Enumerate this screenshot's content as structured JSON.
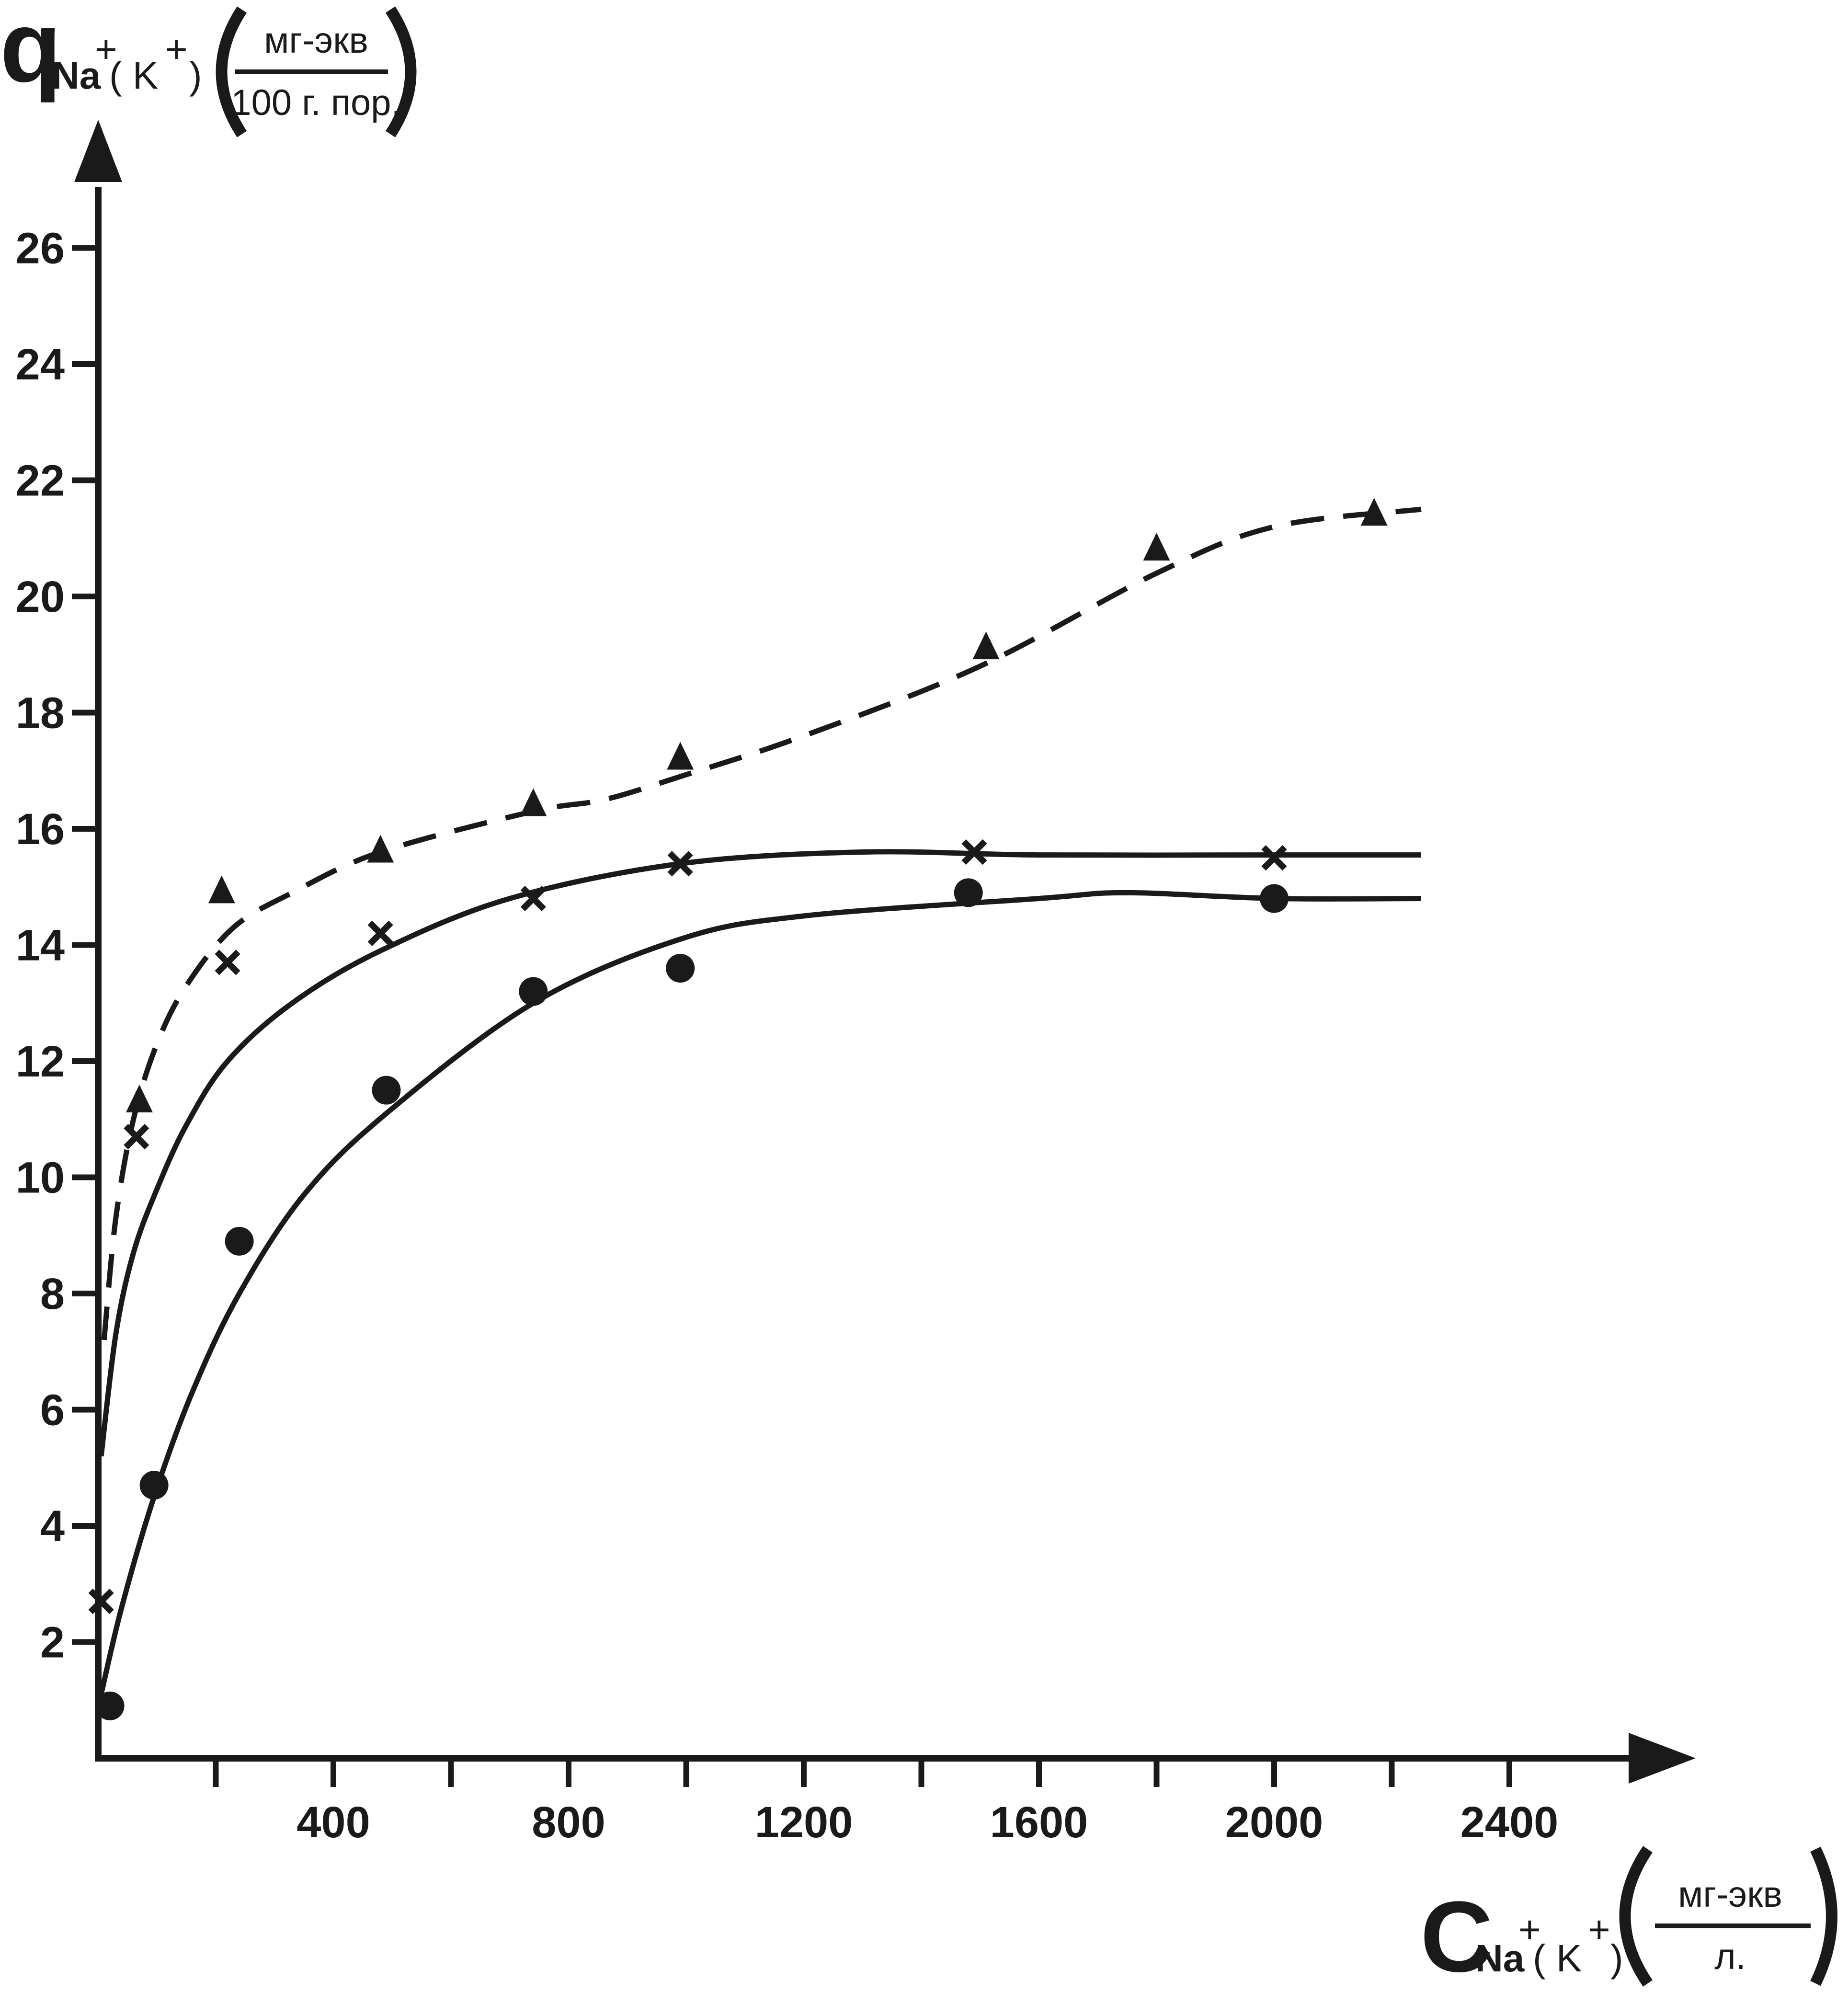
{
  "colors": {
    "ink": "#1a1a1a",
    "background": "#ffffff"
  },
  "y_axis_label": {
    "symbol": "q",
    "ion": "Na",
    "ion_sup": "+",
    "alt_open": "( K",
    "alt_sup": "+",
    "alt_close": ")",
    "unit_numerator": "мг-экв",
    "unit_denominator": "100 г. пор."
  },
  "x_axis_label": {
    "symbol": "C",
    "ion": "Na",
    "ion_sup": "+",
    "alt_open": "( K",
    "alt_sup": "+",
    "alt_close": ")",
    "unit_numerator": "мг-экв",
    "unit_denominator": "л."
  },
  "chart_data": {
    "type": "scatter",
    "title": "",
    "xlabel": "C Na+(K+) (мг-экв / л.)",
    "ylabel": "q Na+(K+) (мг-экв / 100 г. пор.)",
    "xlim": [
      0,
      2740
    ],
    "ylim": [
      0,
      27.8
    ],
    "x_ticks": [
      200,
      400,
      600,
      800,
      1000,
      1200,
      1400,
      1600,
      1800,
      2000,
      2200,
      2400
    ],
    "x_tick_labels": [
      "",
      "400",
      "",
      "800",
      "",
      "1200",
      "",
      "1600",
      "",
      "2000",
      "",
      "2400"
    ],
    "y_ticks": [
      2,
      4,
      6,
      8,
      10,
      12,
      14,
      16,
      18,
      20,
      22,
      24,
      26
    ],
    "y_tick_labels": [
      "2",
      "4",
      "6",
      "8",
      "10",
      "12",
      "14",
      "16",
      "18",
      "20",
      "22",
      "24",
      "26"
    ],
    "grid": false,
    "legend": "none",
    "series": [
      {
        "marker": "triangle",
        "line_style": "dashed",
        "points": [
          [
            70,
            11.3
          ],
          [
            210,
            14.9
          ],
          [
            480,
            15.6
          ],
          [
            740,
            16.4
          ],
          [
            990,
            17.2
          ],
          [
            1510,
            19.1
          ],
          [
            1800,
            20.8
          ],
          [
            2170,
            21.4
          ]
        ],
        "fit": [
          [
            10,
            7.2
          ],
          [
            30,
            9.3
          ],
          [
            60,
            11.0
          ],
          [
            100,
            12.3
          ],
          [
            150,
            13.3
          ],
          [
            230,
            14.3
          ],
          [
            330,
            14.9
          ],
          [
            480,
            15.6
          ],
          [
            740,
            16.3
          ],
          [
            860,
            16.5
          ],
          [
            990,
            16.9
          ],
          [
            1200,
            17.6
          ],
          [
            1500,
            18.8
          ],
          [
            1800,
            20.4
          ],
          [
            2000,
            21.2
          ],
          [
            2250,
            21.5
          ]
        ]
      },
      {
        "marker": "x",
        "line_style": "solid",
        "points": [
          [
            5,
            2.7
          ],
          [
            65,
            10.7
          ],
          [
            220,
            13.7
          ],
          [
            480,
            14.2
          ],
          [
            740,
            14.8
          ],
          [
            990,
            15.4
          ],
          [
            1490,
            15.6
          ],
          [
            2000,
            15.5
          ]
        ],
        "fit": [
          [
            5,
            5.2
          ],
          [
            30,
            7.3
          ],
          [
            60,
            8.7
          ],
          [
            100,
            9.8
          ],
          [
            150,
            10.9
          ],
          [
            220,
            12.0
          ],
          [
            330,
            13.0
          ],
          [
            480,
            13.9
          ],
          [
            700,
            14.8
          ],
          [
            990,
            15.4
          ],
          [
            1300,
            15.6
          ],
          [
            1600,
            15.55
          ],
          [
            2000,
            15.55
          ],
          [
            2250,
            15.55
          ]
        ]
      },
      {
        "marker": "circle",
        "line_style": "solid",
        "points": [
          [
            20,
            0.9
          ],
          [
            95,
            4.7
          ],
          [
            240,
            8.9
          ],
          [
            490,
            11.5
          ],
          [
            740,
            13.2
          ],
          [
            990,
            13.6
          ],
          [
            1480,
            14.9
          ],
          [
            2000,
            14.8
          ]
        ],
        "fit": [
          [
            5,
            1.1
          ],
          [
            40,
            2.6
          ],
          [
            95,
            4.5
          ],
          [
            160,
            6.3
          ],
          [
            240,
            8.0
          ],
          [
            350,
            9.7
          ],
          [
            490,
            11.1
          ],
          [
            740,
            13.0
          ],
          [
            990,
            14.1
          ],
          [
            1200,
            14.5
          ],
          [
            1600,
            14.8
          ],
          [
            1750,
            14.9
          ],
          [
            2000,
            14.8
          ],
          [
            2250,
            14.8
          ]
        ]
      }
    ]
  }
}
